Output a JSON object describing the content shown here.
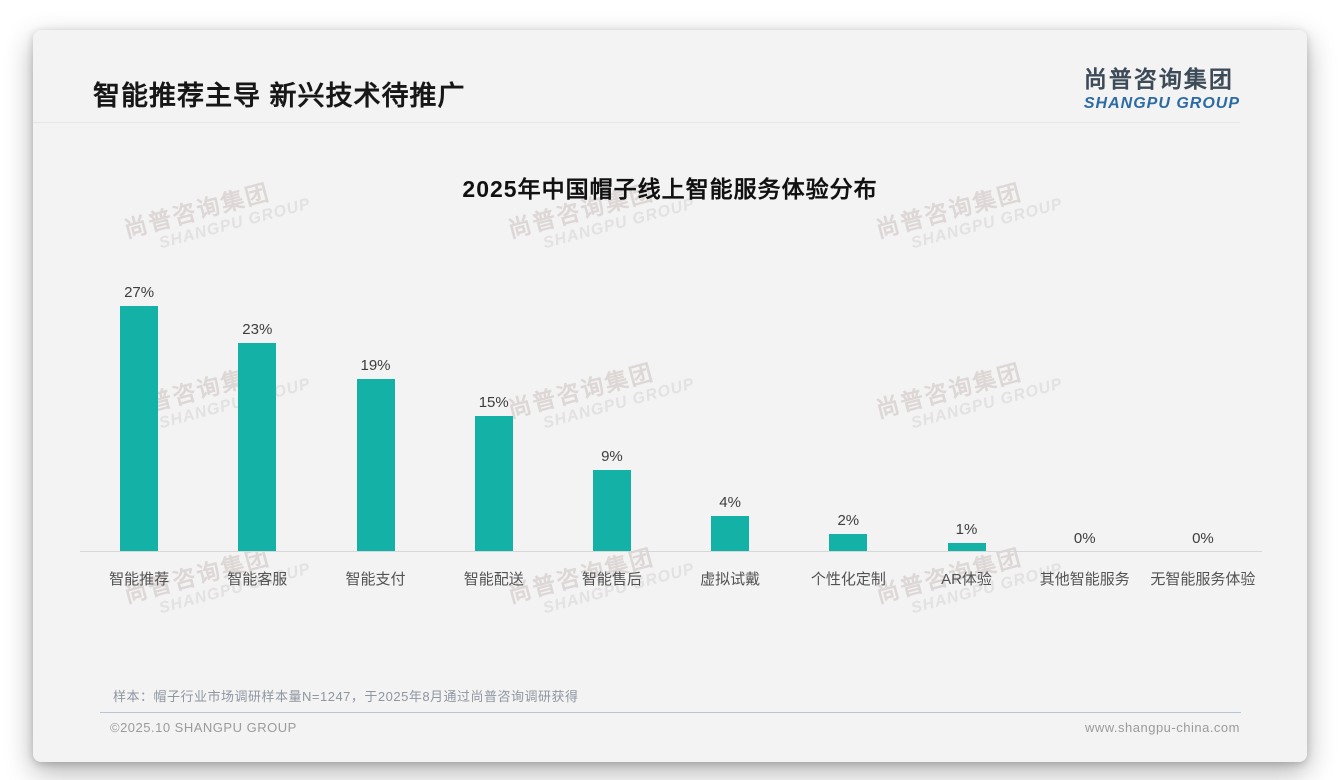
{
  "header": {
    "title": "智能推荐主导 新兴技术待推广"
  },
  "logo": {
    "chinese": "尚普咨询集团",
    "english": "SHANGPU GROUP"
  },
  "watermark": {
    "chinese": "尚普咨询集团",
    "english": "SHANGPU GROUP"
  },
  "chart_data": {
    "type": "bar",
    "title": "2025年中国帽子线上智能服务体验分布",
    "categories": [
      "智能推荐",
      "智能客服",
      "智能支付",
      "智能配送",
      "智能售后",
      "虚拟试戴",
      "个性化定制",
      "AR体验",
      "其他智能服务",
      "无智能服务体验"
    ],
    "values": [
      27,
      23,
      19,
      15,
      9,
      4,
      2,
      1,
      0,
      0
    ],
    "value_labels": [
      "27%",
      "23%",
      "19%",
      "15%",
      "9%",
      "4%",
      "2%",
      "1%",
      "0%",
      "0%"
    ],
    "unit": "%",
    "ylim": [
      0,
      30
    ],
    "bar_color": "#14b2a6",
    "grid": false,
    "y_axis_visible": false,
    "legend": false
  },
  "footnote": "样本：帽子行业市场调研样本量N=1247，于2025年8月通过尚普咨询调研获得",
  "footer": {
    "copyright": "©2025.10 SHANGPU GROUP",
    "website": "www.shangpu-china.com"
  },
  "colors": {
    "bar": "#14b2a6",
    "slide_background": "#f3f3f3",
    "logo_blue": "#2c6aa3",
    "logo_dark": "#3d4a58"
  }
}
